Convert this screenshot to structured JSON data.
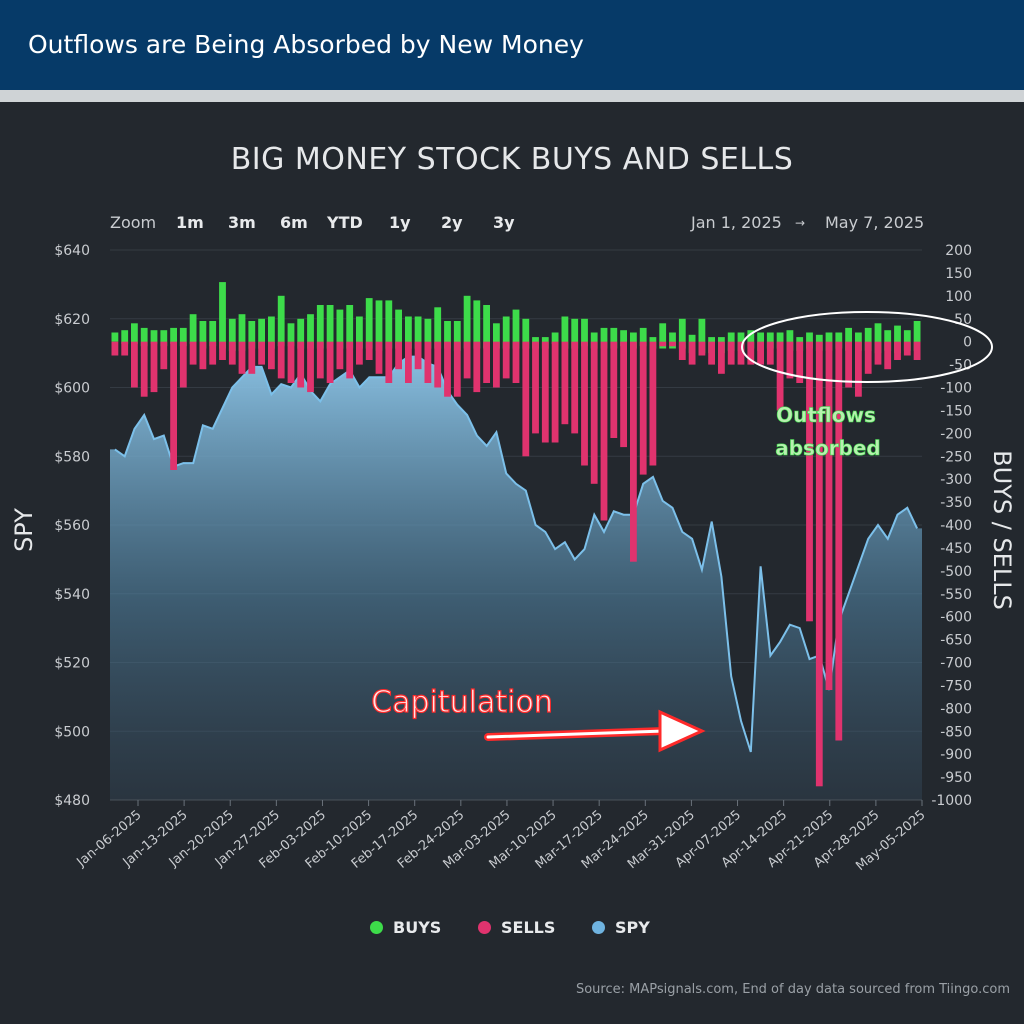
{
  "header": {
    "title": "Outflows are Being Absorbed by New Money"
  },
  "chart_title": "BIG MONEY STOCK BUYS AND SELLS",
  "zoom": {
    "label": "Zoom",
    "options": [
      "1m",
      "3m",
      "6m",
      "YTD",
      "1y",
      "2y",
      "3y"
    ]
  },
  "range": {
    "start": "Jan 1, 2025",
    "arrow": "→",
    "end": "May 7, 2025"
  },
  "legend": [
    {
      "label": "BUYS",
      "color": "#3ddc4a"
    },
    {
      "label": "SELLS",
      "color": "#e0336e"
    },
    {
      "label": "SPY",
      "color": "#6fb3e0"
    }
  ],
  "source": "Source: MAPsignals.com, End of day data sourced from Tiingo.com",
  "annotations": {
    "capitulation": "Capitulation",
    "outflows_line1": "Outflows",
    "outflows_line2": "absorbed"
  },
  "chart_data": {
    "type": "bar",
    "left_axis": {
      "label": "SPY",
      "min": 480,
      "max": 640,
      "ticks": [
        "$480",
        "$500",
        "$520",
        "$540",
        "$560",
        "$580",
        "$600",
        "$620",
        "$640"
      ]
    },
    "right_axis": {
      "label": "BUYS / SELLS",
      "min": -1000,
      "max": 200,
      "ticks": [
        "200",
        "150",
        "100",
        "50",
        "0",
        "-50",
        "-100",
        "-150",
        "-200",
        "-250",
        "-300",
        "-350",
        "-400",
        "-450",
        "-500",
        "-550",
        "-600",
        "-650",
        "-700",
        "-750",
        "-800",
        "-850",
        "-900",
        "-950",
        "-1000"
      ]
    },
    "x_ticks": [
      "Jan-06-2025",
      "Jan-13-2025",
      "Jan-20-2025",
      "Jan-27-2025",
      "Feb-03-2025",
      "Feb-10-2025",
      "Feb-17-2025",
      "Feb-24-2025",
      "Mar-03-2025",
      "Mar-10-2025",
      "Mar-17-2025",
      "Mar-24-2025",
      "Mar-31-2025",
      "Apr-07-2025",
      "Apr-14-2025",
      "Apr-21-2025",
      "Apr-28-2025",
      "May-05-2025"
    ],
    "series": [
      {
        "name": "BUYS",
        "values": [
          20,
          25,
          40,
          30,
          25,
          25,
          30,
          30,
          60,
          45,
          45,
          130,
          50,
          60,
          45,
          50,
          55,
          100,
          40,
          50,
          60,
          80,
          80,
          70,
          80,
          55,
          95,
          90,
          90,
          70,
          55,
          55,
          50,
          75,
          45,
          45,
          100,
          90,
          80,
          40,
          55,
          70,
          50,
          10,
          10,
          20,
          55,
          50,
          50,
          20,
          30,
          30,
          25,
          20,
          30,
          10,
          40,
          20,
          50,
          15,
          50,
          10,
          10,
          20,
          20,
          25,
          20,
          20,
          20,
          25,
          10,
          20,
          15,
          20,
          20,
          30,
          20,
          30,
          40,
          25,
          35,
          25,
          45
        ],
        "ymin": [
          0,
          -5,
          -5,
          -10,
          -5,
          -10,
          -5,
          -10,
          -5,
          -15,
          -10,
          -15,
          -20,
          -20,
          -15,
          -15,
          -15,
          -10,
          -10,
          -15,
          -15,
          -15,
          -15,
          -15,
          -15,
          -15,
          -15,
          -20,
          -15,
          -15,
          -15,
          -15,
          -15,
          -15,
          -15,
          -20,
          -15,
          -15,
          -15,
          -15,
          -15,
          -15,
          -15,
          -15,
          -15,
          -5,
          -15,
          -15,
          -10,
          -15,
          -15,
          -15,
          -10,
          -15,
          -10,
          -15,
          -15,
          -15,
          -15,
          -25,
          -25,
          -25,
          -25,
          -20,
          -20,
          -15,
          -20,
          -15,
          -15,
          -20,
          -20,
          -15,
          -20,
          -20,
          -15,
          -20,
          -20,
          -20,
          -25,
          -20,
          -25,
          -20,
          -20
        ]
      },
      {
        "name": "SELLS",
        "values": [
          -30,
          -30,
          -100,
          -120,
          -110,
          -60,
          -280,
          -100,
          -50,
          -60,
          -50,
          -40,
          -50,
          -70,
          -70,
          -50,
          -60,
          -80,
          -90,
          -100,
          -110,
          -80,
          -90,
          -60,
          -80,
          -50,
          -40,
          -70,
          -90,
          -60,
          -90,
          -60,
          -90,
          -100,
          -120,
          -120,
          -80,
          -110,
          -90,
          -100,
          -80,
          -90,
          -250,
          -200,
          -220,
          -220,
          -180,
          -200,
          -270,
          -310,
          -390,
          -210,
          -230,
          -480,
          -290,
          -270,
          -10,
          -10,
          -40,
          -50,
          -30,
          -50,
          -70,
          -50,
          -50,
          -50,
          -50,
          -50,
          -150,
          -80,
          -90,
          -610,
          -970,
          -760,
          -870,
          -100,
          -120,
          -70,
          -50,
          -60,
          -40,
          -30,
          -40
        ],
        "ymax": [
          0,
          0,
          0,
          0,
          0,
          0,
          0,
          0,
          0,
          0,
          0,
          0,
          0,
          0,
          0,
          0,
          0,
          0,
          0,
          0,
          0,
          0,
          0,
          0,
          0,
          0,
          0,
          0,
          0,
          0,
          0,
          0,
          0,
          0,
          0,
          0,
          0,
          0,
          0,
          0,
          0,
          0,
          0,
          0,
          0,
          0,
          0,
          0,
          0,
          0,
          0,
          0,
          0,
          0,
          0,
          0,
          0,
          0,
          0,
          0,
          0,
          0,
          0,
          0,
          0,
          0,
          0,
          0,
          0,
          0,
          0,
          0,
          0,
          0,
          0,
          0,
          0,
          0,
          0,
          0,
          0,
          0,
          0
        ]
      },
      {
        "name": "SPY",
        "values": [
          582,
          580,
          588,
          592,
          585,
          586,
          577,
          578,
          578,
          589,
          588,
          594,
          600,
          603,
          606,
          606,
          598,
          601,
          600,
          604,
          599,
          596,
          601,
          603,
          605,
          600,
          603,
          603,
          603,
          607,
          609,
          609,
          607,
          606,
          599,
          595,
          592,
          586,
          583,
          587,
          575,
          572,
          570,
          560,
          558,
          553,
          555,
          550,
          553,
          563,
          558,
          564,
          563,
          563,
          572,
          574,
          567,
          565,
          558,
          556,
          547,
          561,
          545,
          516,
          503,
          494,
          548,
          522,
          526,
          531,
          530,
          521,
          522,
          512,
          532,
          540,
          548,
          556,
          560,
          556,
          563,
          565,
          559
        ]
      }
    ]
  }
}
